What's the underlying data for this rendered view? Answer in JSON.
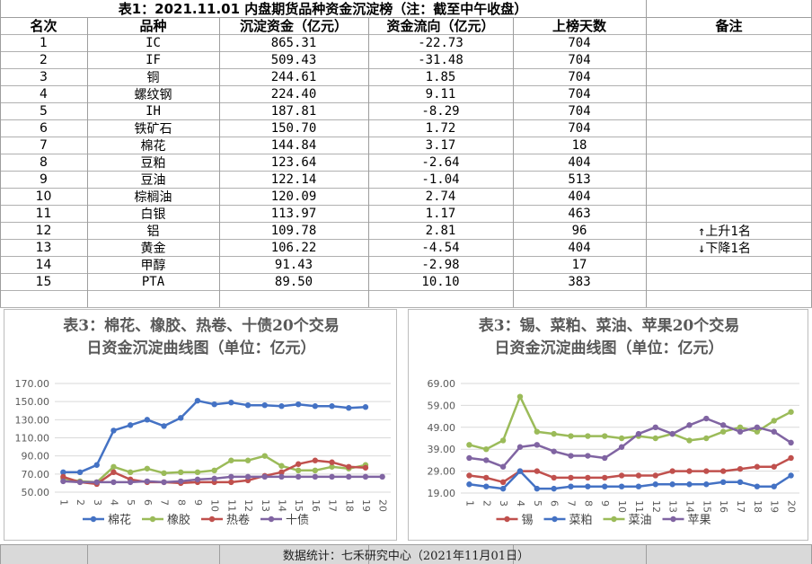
{
  "table": {
    "title": "表1：2021.11.01 内盘期货品种资金沉淀榜（注：截至中午收盘）",
    "headers": [
      "名次",
      "品种",
      "沉淀资金（亿元）",
      "资金流向（亿元）",
      "上榜天数",
      "备注"
    ],
    "rows": [
      [
        "1",
        "IC",
        "865.31",
        "-22.73",
        "704",
        ""
      ],
      [
        "2",
        "IF",
        "509.43",
        "-31.48",
        "704",
        ""
      ],
      [
        "3",
        "铜",
        "244.61",
        "1.85",
        "704",
        ""
      ],
      [
        "4",
        "螺纹钢",
        "224.40",
        "9.11",
        "704",
        ""
      ],
      [
        "5",
        "IH",
        "187.81",
        "-8.29",
        "704",
        ""
      ],
      [
        "6",
        "铁矿石",
        "150.70",
        "1.72",
        "704",
        ""
      ],
      [
        "7",
        "棉花",
        "144.84",
        "3.17",
        "18",
        ""
      ],
      [
        "8",
        "豆粕",
        "123.64",
        "-2.64",
        "404",
        ""
      ],
      [
        "9",
        "豆油",
        "122.14",
        "-1.04",
        "513",
        ""
      ],
      [
        "10",
        "棕榈油",
        "120.09",
        "2.74",
        "404",
        ""
      ],
      [
        "11",
        "白银",
        "113.97",
        "1.17",
        "463",
        ""
      ],
      [
        "12",
        "铝",
        "109.78",
        "2.81",
        "96",
        "↑上升1名"
      ],
      [
        "13",
        "黄金",
        "106.22",
        "-4.54",
        "404",
        "↓下降1名"
      ],
      [
        "14",
        "甲醇",
        "91.43",
        "-2.98",
        "17",
        ""
      ],
      [
        "15",
        "PTA",
        "89.50",
        "10.10",
        "383",
        ""
      ]
    ]
  },
  "footer": {
    "source": "数据统计：七禾研究中心（2021年11月01日）"
  },
  "chart_data": [
    {
      "type": "line",
      "title": "表3：棉花、橡胶、热卷、十债20个交易日资金沉淀曲线图（单位：亿元）",
      "x": [
        1,
        2,
        3,
        4,
        5,
        6,
        7,
        8,
        9,
        10,
        11,
        12,
        13,
        14,
        15,
        16,
        17,
        18,
        19,
        20
      ],
      "ylim": [
        50,
        170
      ],
      "yticks": [
        "50.00",
        "70.00",
        "90.00",
        "110.00",
        "130.00",
        "150.00",
        "170.00"
      ],
      "grid": true,
      "legend": "bottom",
      "series": [
        {
          "name": "棉花",
          "color": "#4472C4",
          "values": [
            72,
            72,
            80,
            118,
            124,
            130,
            123,
            132,
            151,
            147,
            149,
            146,
            146,
            145,
            147,
            145,
            145,
            143,
            144,
            null
          ]
        },
        {
          "name": "橡胶",
          "color": "#9BBB59",
          "values": [
            65,
            62,
            61,
            78,
            72,
            76,
            71,
            72,
            72,
            74,
            85,
            85,
            90,
            79,
            74,
            74,
            78,
            76,
            80,
            null
          ]
        },
        {
          "name": "热卷",
          "color": "#C0504D",
          "values": [
            67,
            61,
            59,
            72,
            64,
            61,
            61,
            60,
            61,
            61,
            61,
            63,
            68,
            72,
            81,
            85,
            83,
            78,
            77,
            null
          ]
        },
        {
          "name": "十债",
          "color": "#8064A2",
          "values": [
            62,
            61,
            61,
            61,
            61,
            62,
            61,
            62,
            64,
            65,
            67,
            67,
            67,
            67,
            67,
            67,
            67,
            67,
            67,
            67
          ]
        }
      ]
    },
    {
      "type": "line",
      "title": "表3：锡、菜粕、菜油、苹果20个交易日资金沉淀曲线图（单位：亿元）",
      "x": [
        1,
        2,
        3,
        4,
        5,
        6,
        7,
        8,
        9,
        10,
        11,
        12,
        13,
        14,
        15,
        16,
        17,
        18,
        19,
        20
      ],
      "ylim": [
        19,
        69
      ],
      "yticks": [
        "19.00",
        "29.00",
        "39.00",
        "49.00",
        "59.00",
        "69.00"
      ],
      "grid": true,
      "legend": "bottom",
      "series": [
        {
          "name": "锡",
          "color": "#C0504D",
          "values": [
            27,
            26,
            24,
            29,
            29,
            26,
            26,
            26,
            26,
            27,
            27,
            27,
            29,
            29,
            29,
            29,
            30,
            31,
            31,
            35
          ]
        },
        {
          "name": "菜粕",
          "color": "#4472C4",
          "values": [
            23,
            22,
            21,
            29,
            21,
            21,
            22,
            22,
            22,
            22,
            22,
            23,
            23,
            23,
            23,
            24,
            24,
            22,
            22,
            27
          ]
        },
        {
          "name": "菜油",
          "color": "#9BBB59",
          "values": [
            41,
            39,
            43,
            63,
            47,
            46,
            45,
            45,
            45,
            44,
            45,
            44,
            46,
            43,
            44,
            47,
            49,
            47,
            52,
            56
          ]
        },
        {
          "name": "苹果",
          "color": "#8064A2",
          "values": [
            35,
            34,
            31,
            40,
            41,
            38,
            36,
            36,
            35,
            40,
            46,
            49,
            46,
            50,
            53,
            50,
            47,
            49,
            47,
            42
          ]
        }
      ]
    }
  ]
}
